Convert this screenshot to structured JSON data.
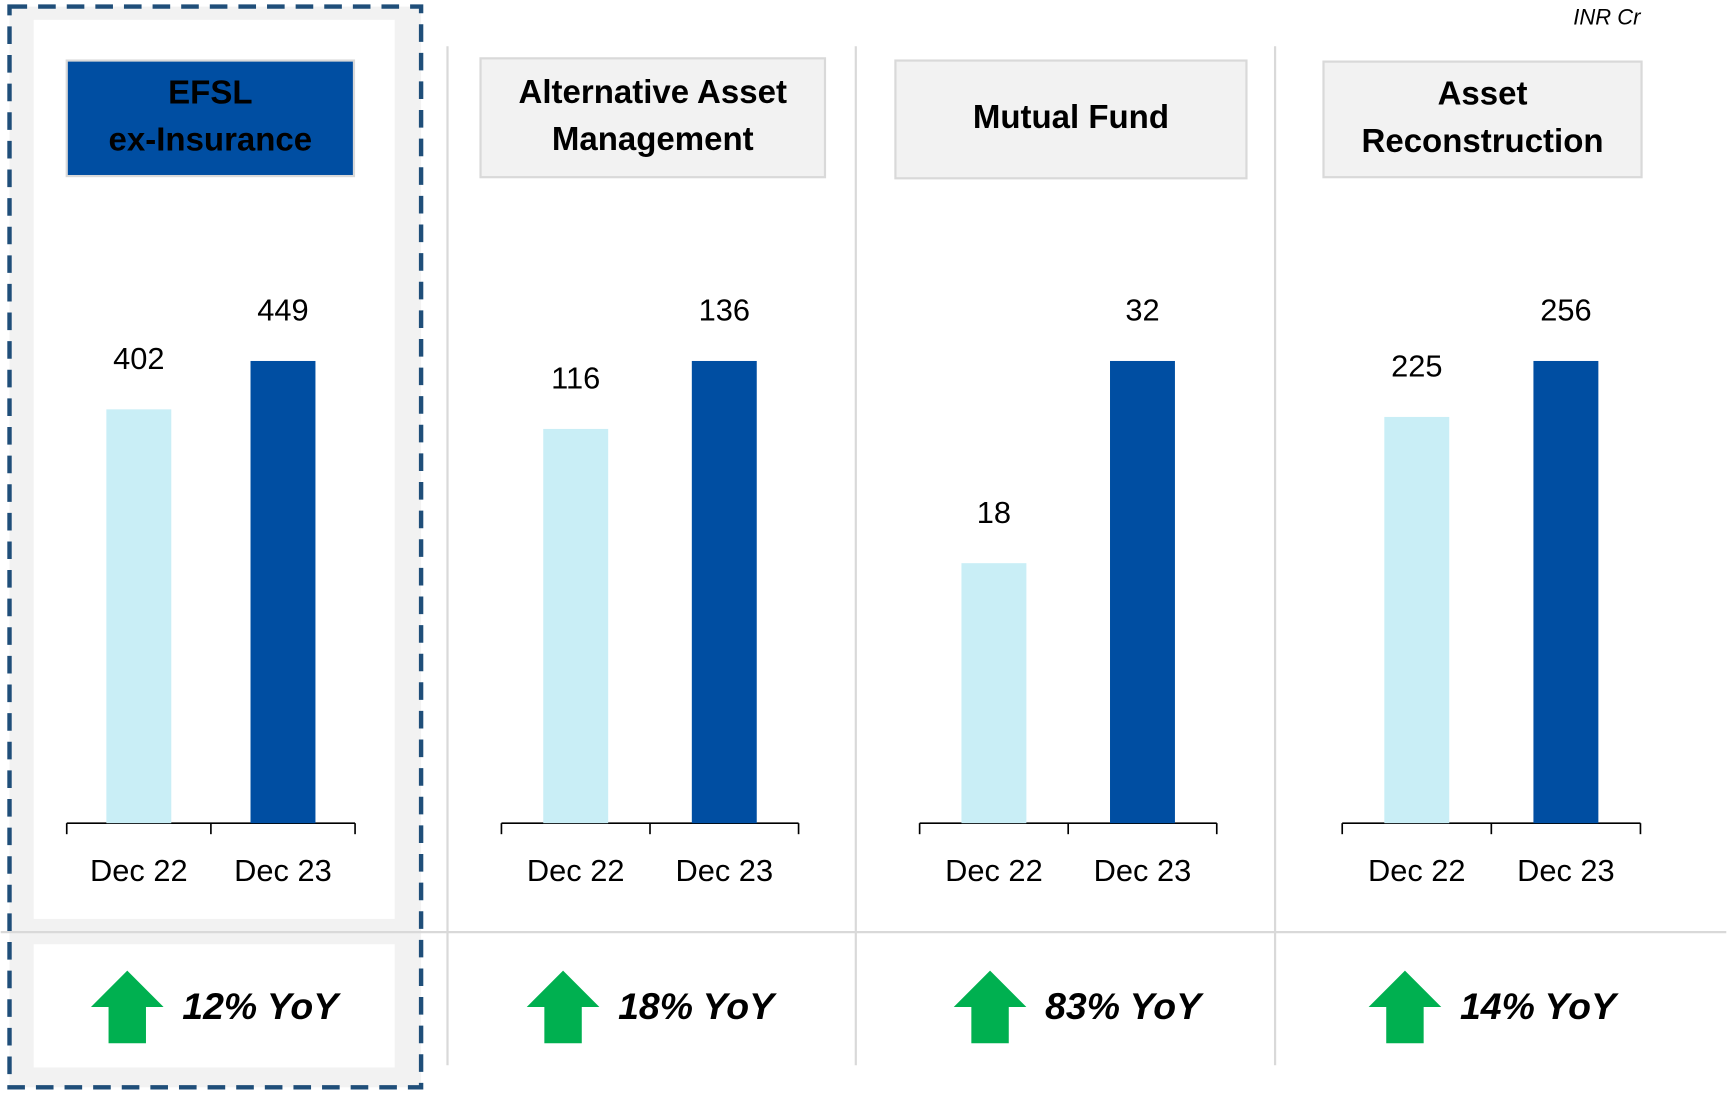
{
  "unit_note": "INR Cr",
  "chart_data": [
    {
      "type": "bar",
      "title": [
        "EFSL",
        "ex-Insurance"
      ],
      "highlight": true,
      "categories": [
        "Dec 22",
        "Dec 23"
      ],
      "values": [
        402,
        449
      ],
      "colors": [
        "#c9eef6",
        "#004ea2"
      ],
      "yoy": "12% YoY"
    },
    {
      "type": "bar",
      "title": [
        "Alternative Asset",
        "Management"
      ],
      "highlight": false,
      "categories": [
        "Dec 22",
        "Dec 23"
      ],
      "values": [
        116,
        136
      ],
      "colors": [
        "#c9eef6",
        "#004ea2"
      ],
      "yoy": "18% YoY"
    },
    {
      "type": "bar",
      "title": [
        "Mutual Fund"
      ],
      "highlight": false,
      "categories": [
        "Dec 22",
        "Dec 23"
      ],
      "values": [
        18,
        32
      ],
      "colors": [
        "#c9eef6",
        "#004ea2"
      ],
      "yoy": "83% YoY"
    },
    {
      "type": "bar",
      "title": [
        "Asset",
        "Reconstruction"
      ],
      "highlight": false,
      "categories": [
        "Dec 22",
        "Dec 23"
      ],
      "values": [
        225,
        256
      ],
      "colors": [
        "#c9eef6",
        "#004ea2"
      ],
      "yoy": "14% YoY"
    }
  ]
}
